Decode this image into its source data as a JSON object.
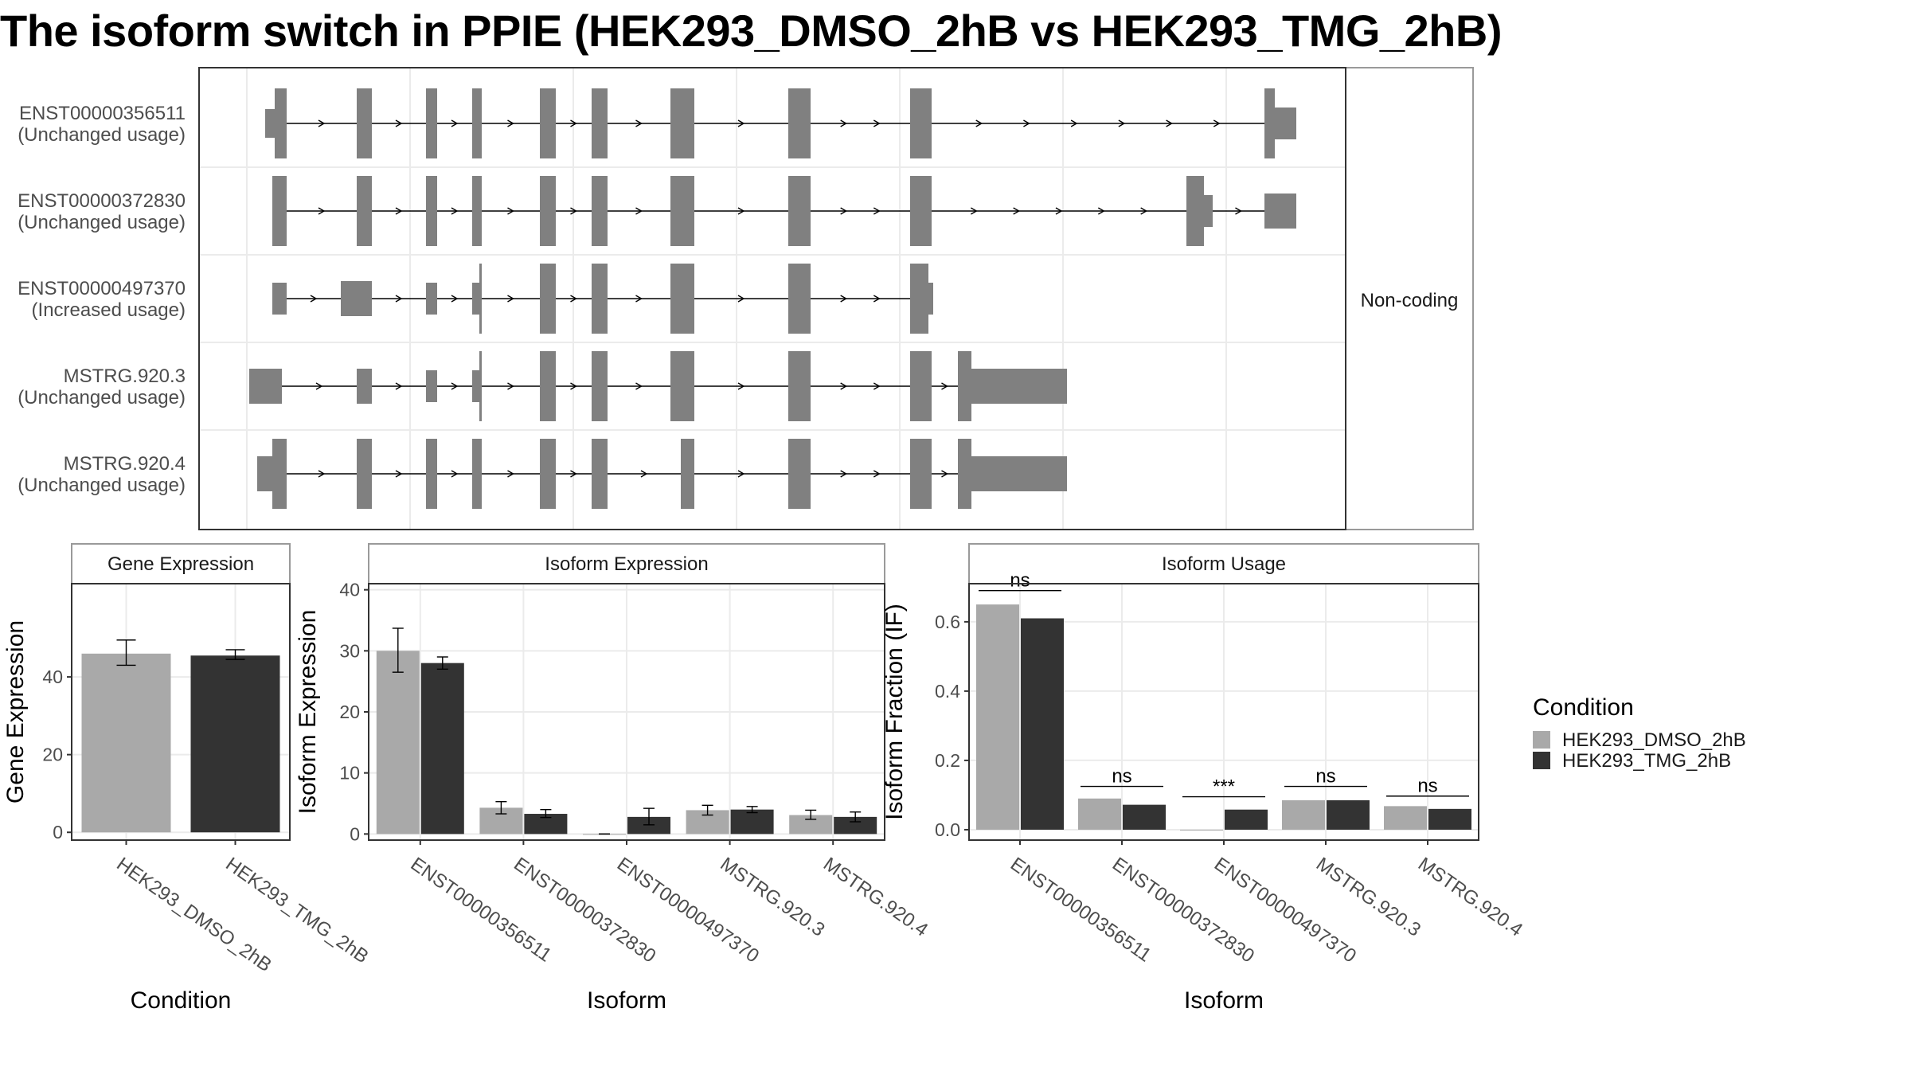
{
  "title": "The isoform switch in PPIE (HEK293_DMSO_2hB vs HEK293_TMG_2hB)",
  "colors": {
    "exon": "#808080",
    "dmso": "#a9a9a9",
    "tmg": "#333333",
    "panel_border": "#333333",
    "strip_border": "#9a9a9a",
    "grid": "#ebebeb"
  },
  "chart_data": [
    {
      "type": "gene-structure",
      "strip_label": "Non-coding",
      "transcripts": [
        {
          "id": "ENST00000356511",
          "label": "ENST00000356511",
          "usage": "(Unchanged usage)"
        },
        {
          "id": "ENST00000372830",
          "label": "ENST00000372830",
          "usage": "(Unchanged usage)"
        },
        {
          "id": "ENST00000497370",
          "label": "ENST00000497370",
          "usage": "(Increased usage)"
        },
        {
          "id": "MSTRG.920.3",
          "label": "MSTRG.920.3",
          "usage": "(Unchanged usage)"
        },
        {
          "id": "MSTRG.920.4",
          "label": "MSTRG.920.4",
          "usage": "(Unchanged usage)"
        }
      ]
    },
    {
      "type": "bar",
      "strip_title": "Gene Expression",
      "xlabel": "Condition",
      "ylabel": "Gene Expression",
      "ylim": [
        -2,
        64
      ],
      "yticks": [
        0,
        20,
        40
      ],
      "categories": [
        "HEK293_DMSO_2hB",
        "HEK293_TMG_2hB"
      ],
      "values": [
        46,
        45.5
      ],
      "errors": [
        [
          43,
          49.5
        ],
        [
          44.5,
          47
        ]
      ]
    },
    {
      "type": "bar",
      "strip_title": "Isoform Expression",
      "xlabel": "Isoform",
      "ylabel": "Isoform Expression",
      "ylim": [
        -1,
        41
      ],
      "yticks": [
        0,
        10,
        20,
        30,
        40
      ],
      "categories": [
        "ENST00000356511",
        "ENST00000372830",
        "ENST00000497370",
        "MSTRG.920.3",
        "MSTRG.920.4"
      ],
      "series": [
        {
          "name": "HEK293_DMSO_2hB",
          "values": [
            30,
            4.3,
            0,
            3.9,
            3.1
          ],
          "errors": [
            [
              26.5,
              33.7
            ],
            [
              3.3,
              5.3
            ],
            [
              0,
              0
            ],
            [
              3.1,
              4.7
            ],
            [
              2.4,
              3.9
            ]
          ]
        },
        {
          "name": "HEK293_TMG_2hB",
          "values": [
            28,
            3.3,
            2.8,
            4.0,
            2.8
          ],
          "errors": [
            [
              27.0,
              29.0
            ],
            [
              2.7,
              4.0
            ],
            [
              1.5,
              4.2
            ],
            [
              3.5,
              4.5
            ],
            [
              2.0,
              3.6
            ]
          ]
        }
      ]
    },
    {
      "type": "bar",
      "strip_title": "Isoform Usage",
      "xlabel": "Isoform",
      "ylabel": "Isoform Fraction (IF)",
      "ylim": [
        -0.03,
        0.71
      ],
      "yticks": [
        "0.0",
        "0.2",
        "0.4",
        "0.6"
      ],
      "categories": [
        "ENST00000356511",
        "ENST00000372830",
        "ENST00000497370",
        "MSTRG.920.3",
        "MSTRG.920.4"
      ],
      "series": [
        {
          "name": "HEK293_DMSO_2hB",
          "values": [
            0.65,
            0.09,
            0.0,
            0.085,
            0.068
          ]
        },
        {
          "name": "HEK293_TMG_2hB",
          "values": [
            0.61,
            0.072,
            0.058,
            0.085,
            0.06
          ]
        }
      ],
      "significance": [
        "ns",
        "ns",
        "***",
        "ns",
        "ns"
      ],
      "sig_line_y": [
        0.69,
        0.125,
        0.095,
        0.125,
        0.097
      ]
    }
  ],
  "legend": {
    "title": "Condition",
    "items": [
      {
        "label": "HEK293_DMSO_2hB",
        "color": "#a9a9a9"
      },
      {
        "label": "HEK293_TMG_2hB",
        "color": "#333333"
      }
    ]
  }
}
